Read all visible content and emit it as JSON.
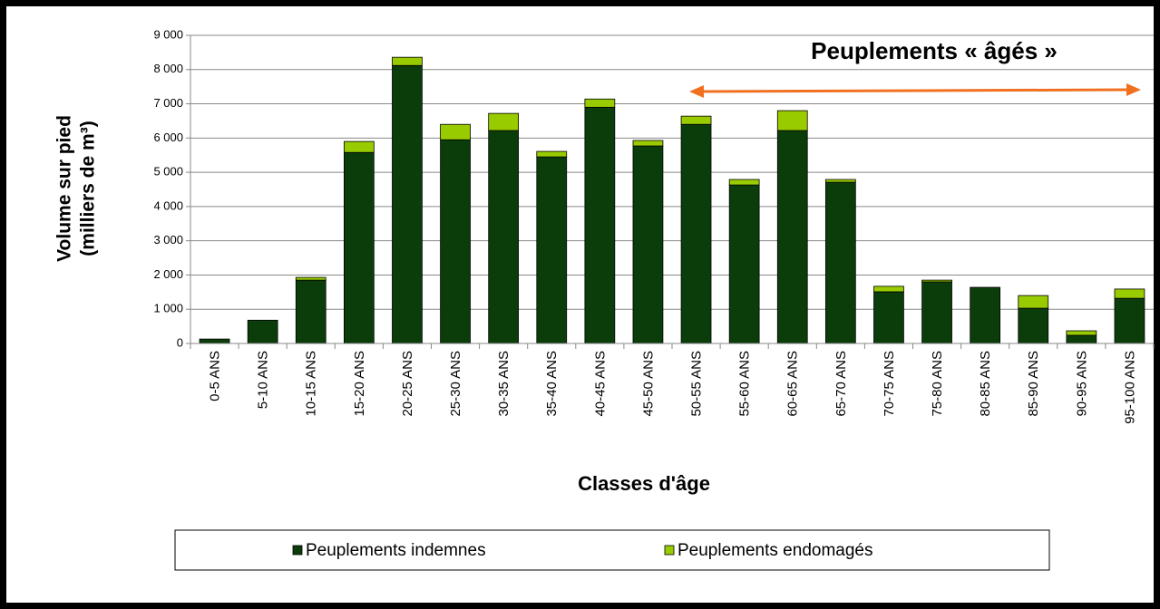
{
  "chart_data": {
    "type": "stacked-bar",
    "annotation": "Peuplements « âgés »",
    "y_label": [
      "Volume sur pied",
      "(milliers de m³)"
    ],
    "x_label": "Classes d'âge",
    "categories": [
      "0-5 ANS",
      "5-10 ANS",
      "10-15 ANS",
      "15-20 ANS",
      "20-25 ANS",
      "25-30 ANS",
      "30-35 ANS",
      "35-40 ANS",
      "40-45 ANS",
      "45-50 ANS",
      "50-55 ANS",
      "55-60 ANS",
      "60-65 ANS",
      "65-70 ANS",
      "70-75 ANS",
      "75-80 ANS",
      "80-85 ANS",
      "85-90 ANS",
      "90-95 ANS",
      "95-100 ANS"
    ],
    "series": [
      {
        "name": "Peuplements indemnes",
        "color": "#0b3d0b",
        "values": [
          130,
          680,
          1850,
          5580,
          8120,
          5950,
          6220,
          5450,
          6900,
          5770,
          6400,
          4630,
          6220,
          4710,
          1510,
          1800,
          1640,
          1030,
          240,
          1320
        ]
      },
      {
        "name": "Peuplements endomagés",
        "color": "#99cc00",
        "values": [
          0,
          0,
          80,
          320,
          240,
          450,
          500,
          160,
          240,
          160,
          240,
          160,
          580,
          80,
          160,
          50,
          0,
          370,
          130,
          270
        ]
      }
    ],
    "ylim": [
      0,
      9000
    ],
    "yticks": [
      0,
      {
        "value": 1000,
        "label": "1 000"
      },
      {
        "value": 2000,
        "label": "2 000"
      },
      {
        "value": 3000,
        "label": "3 000"
      },
      {
        "value": 4000,
        "label": "4 000"
      },
      {
        "value": 5000,
        "label": "5 000"
      },
      {
        "value": 6000,
        "label": "6 000"
      },
      {
        "value": 7000,
        "label": "7 000"
      },
      {
        "value": 8000,
        "label": "8 000"
      },
      {
        "value": 9000,
        "label": "9 000"
      }
    ],
    "grid": true,
    "legend": "bottom"
  }
}
